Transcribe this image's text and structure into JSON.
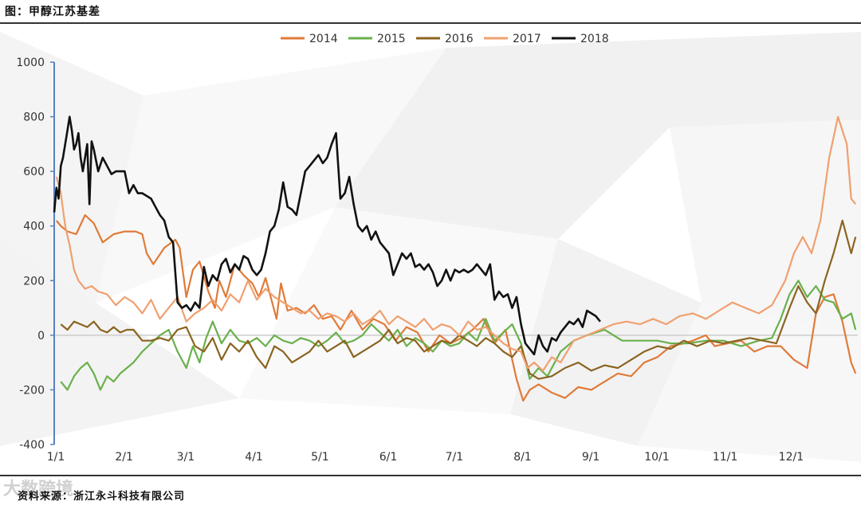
{
  "header": {
    "title": "图：甲醇江苏基差"
  },
  "footer": {
    "source": "资料来源：浙江永斗科技有限公司",
    "watermark": "大数跨境"
  },
  "colors": {
    "2014": "#e07b39",
    "2015": "#6ab04c",
    "2016": "#8b6420",
    "2017": "#f0a070",
    "2018": "#111111",
    "axis": "#5b7fbf",
    "zero": "#cccccc"
  },
  "chart_data": {
    "type": "line",
    "title": "",
    "xlabel": "",
    "ylabel": "",
    "xlim": [
      0,
      365
    ],
    "ylim": [
      -400,
      1000
    ],
    "yticks": [
      -400,
      -200,
      0,
      200,
      400,
      600,
      800,
      1000
    ],
    "xticks": [
      {
        "day": 0,
        "label": "1/1"
      },
      {
        "day": 31,
        "label": "2/1"
      },
      {
        "day": 59,
        "label": "3/1"
      },
      {
        "day": 90,
        "label": "4/1"
      },
      {
        "day": 120,
        "label": "5/1"
      },
      {
        "day": 151,
        "label": "6/1"
      },
      {
        "day": 181,
        "label": "7/1"
      },
      {
        "day": 212,
        "label": "8/1"
      },
      {
        "day": 243,
        "label": "9/1"
      },
      {
        "day": 273,
        "label": "10/1"
      },
      {
        "day": 304,
        "label": "11/1"
      },
      {
        "day": 334,
        "label": "12/1"
      }
    ],
    "legend_position": "top-center",
    "series": [
      {
        "name": "2014",
        "x": [
          1,
          3,
          6,
          10,
          14,
          18,
          22,
          27,
          32,
          37,
          40,
          42,
          45,
          50,
          55,
          57,
          60,
          63,
          66,
          70,
          73,
          75,
          78,
          82,
          86,
          90,
          93,
          96,
          99,
          101,
          103,
          106,
          110,
          114,
          118,
          122,
          126,
          130,
          135,
          140,
          145,
          150,
          155,
          160,
          165,
          170,
          175,
          180,
          185,
          190,
          195,
          200,
          205,
          210,
          213,
          216,
          220,
          226,
          232,
          238,
          244,
          250,
          256,
          262,
          268,
          274,
          280,
          286,
          290,
          296,
          300,
          306,
          312,
          318,
          324,
          330,
          336,
          342,
          346,
          350,
          354,
          358,
          362,
          364
        ],
        "y": [
          420,
          400,
          380,
          370,
          440,
          410,
          340,
          370,
          380,
          380,
          370,
          300,
          260,
          320,
          350,
          320,
          140,
          240,
          270,
          160,
          100,
          200,
          140,
          260,
          220,
          190,
          140,
          210,
          120,
          60,
          190,
          90,
          100,
          80,
          110,
          60,
          70,
          20,
          90,
          20,
          60,
          40,
          -20,
          30,
          10,
          -60,
          0,
          -30,
          -10,
          20,
          60,
          -30,
          20,
          -160,
          -240,
          -200,
          -180,
          -210,
          -230,
          -190,
          -200,
          -170,
          -140,
          -150,
          -100,
          -80,
          -40,
          -30,
          -20,
          0,
          -40,
          -30,
          -20,
          -60,
          -40,
          -40,
          -90,
          -120,
          80,
          140,
          150,
          50,
          -100,
          -140
        ]
      },
      {
        "name": "2015",
        "x": [
          3,
          6,
          9,
          12,
          15,
          18,
          21,
          24,
          27,
          30,
          33,
          36,
          40,
          44,
          48,
          52,
          56,
          60,
          63,
          66,
          69,
          72,
          76,
          80,
          84,
          88,
          92,
          96,
          100,
          104,
          108,
          112,
          116,
          120,
          124,
          128,
          132,
          136,
          140,
          144,
          148,
          152,
          156,
          160,
          164,
          168,
          172,
          176,
          180,
          184,
          188,
          192,
          196,
          200,
          204,
          208,
          212,
          216,
          220,
          224,
          230,
          236,
          242,
          250,
          258,
          266,
          274,
          280,
          288,
          296,
          304,
          312,
          320,
          326,
          330,
          334,
          338,
          342,
          346,
          350,
          354,
          358,
          362,
          364
        ],
        "y": [
          -170,
          -200,
          -150,
          -120,
          -100,
          -140,
          -200,
          -150,
          -170,
          -140,
          -120,
          -100,
          -60,
          -30,
          0,
          20,
          -60,
          -120,
          -40,
          -100,
          -10,
          50,
          -30,
          20,
          -20,
          -30,
          -10,
          -40,
          0,
          -20,
          -30,
          -10,
          -20,
          -40,
          -20,
          10,
          -30,
          -20,
          0,
          40,
          10,
          -20,
          20,
          -40,
          -10,
          -30,
          -60,
          -20,
          -40,
          -30,
          10,
          -20,
          60,
          -20,
          10,
          40,
          -30,
          -160,
          -120,
          -150,
          -60,
          -20,
          0,
          20,
          -20,
          -20,
          -20,
          -30,
          -30,
          -20,
          -20,
          -40,
          -20,
          -10,
          60,
          150,
          200,
          140,
          180,
          130,
          120,
          60,
          80,
          20
        ]
      },
      {
        "name": "2016",
        "x": [
          3,
          6,
          9,
          12,
          15,
          18,
          21,
          24,
          27,
          30,
          33,
          36,
          40,
          44,
          48,
          52,
          56,
          60,
          64,
          68,
          72,
          76,
          80,
          84,
          88,
          92,
          96,
          100,
          104,
          108,
          112,
          116,
          120,
          124,
          128,
          132,
          136,
          140,
          144,
          148,
          152,
          156,
          160,
          164,
          168,
          172,
          176,
          180,
          184,
          188,
          192,
          196,
          200,
          204,
          208,
          212,
          216,
          220,
          226,
          232,
          238,
          244,
          250,
          256,
          262,
          268,
          274,
          280,
          286,
          292,
          298,
          304,
          310,
          316,
          322,
          328,
          334,
          338,
          342,
          346,
          350,
          354,
          358,
          362,
          364
        ],
        "y": [
          40,
          20,
          50,
          40,
          30,
          50,
          20,
          10,
          30,
          10,
          20,
          20,
          -20,
          -20,
          -10,
          -20,
          20,
          30,
          -40,
          -60,
          -10,
          -90,
          -30,
          -60,
          -20,
          -80,
          -120,
          -40,
          -60,
          -100,
          -80,
          -60,
          -20,
          -60,
          -40,
          -20,
          -80,
          -60,
          -40,
          -20,
          20,
          -30,
          -10,
          -20,
          -60,
          -40,
          -20,
          -30,
          0,
          -20,
          -40,
          -10,
          -30,
          -60,
          -80,
          -40,
          -140,
          -160,
          -150,
          -120,
          -100,
          -130,
          -110,
          -120,
          -90,
          -60,
          -40,
          -50,
          -20,
          -40,
          -20,
          -30,
          -20,
          -10,
          -20,
          -30,
          100,
          180,
          120,
          80,
          200,
          300,
          420,
          300,
          360
        ]
      },
      {
        "name": "2017",
        "x": [
          1,
          3,
          5,
          7,
          9,
          11,
          14,
          17,
          20,
          24,
          28,
          32,
          36,
          40,
          44,
          48,
          52,
          56,
          60,
          64,
          68,
          72,
          76,
          80,
          84,
          88,
          92,
          96,
          100,
          104,
          108,
          112,
          116,
          120,
          124,
          128,
          132,
          136,
          140,
          144,
          148,
          152,
          156,
          160,
          164,
          168,
          172,
          176,
          180,
          184,
          188,
          192,
          196,
          200,
          204,
          208,
          212,
          215,
          218,
          222,
          226,
          230,
          236,
          242,
          248,
          254,
          260,
          266,
          272,
          278,
          284,
          290,
          296,
          302,
          308,
          314,
          320,
          326,
          332,
          336,
          340,
          344,
          348,
          352,
          356,
          360,
          362,
          364
        ],
        "y": [
          580,
          520,
          400,
          330,
          240,
          200,
          170,
          180,
          160,
          150,
          110,
          140,
          120,
          80,
          130,
          60,
          100,
          140,
          50,
          80,
          100,
          130,
          90,
          150,
          120,
          200,
          130,
          170,
          140,
          120,
          100,
          80,
          90,
          60,
          80,
          70,
          50,
          80,
          40,
          60,
          90,
          40,
          70,
          50,
          30,
          60,
          20,
          40,
          30,
          0,
          50,
          20,
          30,
          0,
          -30,
          -50,
          -60,
          -120,
          -100,
          -130,
          -80,
          -100,
          -20,
          0,
          20,
          40,
          50,
          40,
          60,
          40,
          70,
          80,
          60,
          90,
          120,
          100,
          80,
          110,
          200,
          300,
          360,
          300,
          420,
          650,
          800,
          700,
          500,
          480
        ]
      },
      {
        "name": "2018",
        "x": [
          0,
          1,
          2,
          3,
          4,
          6,
          7,
          8,
          9,
          10,
          11,
          12,
          13,
          15,
          16,
          17,
          18,
          20,
          22,
          24,
          26,
          28,
          30,
          32,
          34,
          36,
          38,
          40,
          42,
          44,
          46,
          48,
          50,
          52,
          54,
          56,
          58,
          60,
          62,
          64,
          66,
          68,
          70,
          72,
          74,
          76,
          78,
          80,
          82,
          84,
          86,
          88,
          90,
          92,
          94,
          96,
          98,
          100,
          102,
          104,
          106,
          108,
          110,
          112,
          114,
          116,
          118,
          120,
          122,
          124,
          126,
          128,
          130,
          132,
          134,
          136,
          138,
          140,
          142,
          144,
          146,
          148,
          150,
          152,
          154,
          156,
          158,
          160,
          162,
          164,
          166,
          168,
          170,
          172,
          174,
          176,
          178,
          180,
          182,
          184,
          186,
          188,
          190,
          192,
          194,
          196,
          198,
          200,
          202,
          204,
          206,
          208,
          210,
          212,
          214,
          216,
          218,
          220,
          222,
          224,
          226,
          228,
          230,
          232,
          234,
          236,
          238,
          240,
          242,
          244,
          246,
          248
        ],
        "y": [
          450,
          540,
          500,
          620,
          650,
          750,
          800,
          750,
          680,
          700,
          740,
          650,
          600,
          700,
          480,
          710,
          680,
          600,
          650,
          620,
          590,
          600,
          600,
          600,
          520,
          550,
          520,
          520,
          510,
          500,
          470,
          440,
          420,
          360,
          340,
          120,
          100,
          110,
          90,
          120,
          100,
          250,
          180,
          220,
          200,
          260,
          280,
          230,
          260,
          240,
          290,
          280,
          240,
          220,
          240,
          300,
          380,
          400,
          460,
          560,
          470,
          460,
          440,
          520,
          600,
          620,
          640,
          660,
          630,
          650,
          700,
          740,
          500,
          520,
          580,
          480,
          400,
          380,
          400,
          350,
          380,
          340,
          320,
          300,
          220,
          260,
          300,
          280,
          300,
          250,
          260,
          240,
          260,
          230,
          180,
          200,
          240,
          200,
          240,
          230,
          240,
          230,
          240,
          260,
          240,
          220,
          260,
          130,
          160,
          140,
          150,
          100,
          140,
          40,
          -30,
          -50,
          -70,
          0,
          -40,
          -60,
          -10,
          -20,
          10,
          30,
          50,
          40,
          60,
          30,
          90,
          80,
          70,
          50
        ]
      }
    ]
  }
}
